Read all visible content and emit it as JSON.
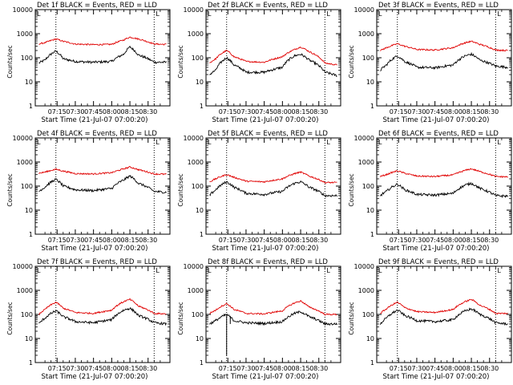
{
  "shared": {
    "xlabel": "Start Time (21-Jul-07 07:00:20)",
    "ylabel": "Counts/sec",
    "x_tick_labels": [
      "07:15",
      "07:30",
      "07:45",
      "08:00",
      "08:15",
      "08:30"
    ],
    "y_tick_labels": [
      "1",
      "10",
      "100",
      "1000",
      "10000"
    ],
    "dotted_marker_times_min": [
      14,
      95
    ],
    "l_marker_label": "L"
  },
  "chart_data": [
    {
      "type": "line",
      "title": "Det 1f BLACK = Events, RED = LLD",
      "x_unit": "minutes after 07:00:20",
      "xlim": [
        -3,
        108
      ],
      "ylim": [
        1,
        10000
      ],
      "y_scale": "log",
      "grid": false,
      "x": [
        0,
        5,
        14,
        20,
        30,
        45,
        60,
        70,
        75,
        82,
        95,
        105
      ],
      "series": [
        {
          "name": "BLACK = Events",
          "color": "#000000",
          "values": [
            60,
            80,
            190,
            90,
            70,
            65,
            70,
            140,
            280,
            130,
            65,
            65
          ]
        },
        {
          "name": "RED = LLD",
          "color": "#e00000",
          "values": [
            380,
            420,
            600,
            480,
            370,
            350,
            360,
            550,
            720,
            600,
            370,
            360
          ]
        }
      ]
    },
    {
      "type": "line",
      "title": "Det 2f BLACK = Events, RED = LLD",
      "x_unit": "minutes after 07:00:20",
      "xlim": [
        -3,
        108
      ],
      "ylim": [
        1,
        10000
      ],
      "y_scale": "log",
      "grid": false,
      "x": [
        0,
        5,
        14,
        20,
        30,
        45,
        60,
        70,
        75,
        82,
        95,
        105
      ],
      "series": [
        {
          "name": "BLACK = Events",
          "color": "#000000",
          "values": [
            20,
            30,
            100,
            50,
            25,
            25,
            40,
            120,
            140,
            80,
            25,
            18
          ]
        },
        {
          "name": "RED = LLD",
          "color": "#e00000",
          "values": [
            60,
            90,
            200,
            110,
            70,
            65,
            110,
            220,
            280,
            180,
            60,
            50
          ]
        }
      ]
    },
    {
      "type": "line",
      "title": "Det 3f BLACK = Events, RED = LLD",
      "x_unit": "minutes after 07:00:20",
      "xlim": [
        -3,
        108
      ],
      "ylim": [
        1,
        10000
      ],
      "y_scale": "log",
      "grid": false,
      "x": [
        0,
        5,
        14,
        20,
        30,
        45,
        60,
        70,
        75,
        82,
        95,
        105
      ],
      "series": [
        {
          "name": "BLACK = Events",
          "color": "#000000",
          "values": [
            30,
            50,
            120,
            70,
            40,
            38,
            50,
            120,
            140,
            80,
            45,
            40
          ]
        },
        {
          "name": "RED = LLD",
          "color": "#e00000",
          "values": [
            200,
            260,
            380,
            300,
            220,
            210,
            260,
            420,
            480,
            360,
            210,
            200
          ]
        }
      ]
    },
    {
      "type": "line",
      "title": "Det 4f BLACK = Events, RED = LLD",
      "x_unit": "minutes after 07:00:20",
      "xlim": [
        -3,
        108
      ],
      "ylim": [
        1,
        10000
      ],
      "y_scale": "log",
      "grid": false,
      "x": [
        0,
        5,
        14,
        20,
        30,
        45,
        60,
        70,
        75,
        82,
        95,
        105
      ],
      "series": [
        {
          "name": "BLACK = Events",
          "color": "#000000",
          "values": [
            60,
            90,
            190,
            100,
            70,
            65,
            80,
            180,
            260,
            130,
            60,
            55
          ]
        },
        {
          "name": "RED = LLD",
          "color": "#e00000",
          "values": [
            340,
            380,
            500,
            420,
            330,
            320,
            360,
            520,
            620,
            480,
            320,
            310
          ]
        }
      ]
    },
    {
      "type": "line",
      "title": "Det 5f BLACK = Events, RED = LLD",
      "x_unit": "minutes after 07:00:20",
      "xlim": [
        -3,
        108
      ],
      "ylim": [
        1,
        10000
      ],
      "y_scale": "log",
      "grid": false,
      "x": [
        0,
        5,
        14,
        20,
        30,
        45,
        60,
        70,
        75,
        82,
        95,
        105
      ],
      "series": [
        {
          "name": "BLACK = Events",
          "color": "#000000",
          "values": [
            40,
            70,
            150,
            90,
            50,
            45,
            60,
            130,
            150,
            90,
            40,
            40
          ]
        },
        {
          "name": "RED = LLD",
          "color": "#e00000",
          "values": [
            150,
            200,
            300,
            230,
            160,
            150,
            200,
            330,
            380,
            260,
            140,
            140
          ]
        }
      ]
    },
    {
      "type": "line",
      "title": "Det 6f BLACK = Events, RED = LLD",
      "x_unit": "minutes after 07:00:20",
      "xlim": [
        -3,
        108
      ],
      "ylim": [
        1,
        10000
      ],
      "y_scale": "log",
      "grid": false,
      "x": [
        0,
        5,
        14,
        20,
        30,
        45,
        60,
        70,
        75,
        82,
        95,
        105
      ],
      "series": [
        {
          "name": "BLACK = Events",
          "color": "#000000",
          "values": [
            40,
            60,
            120,
            70,
            45,
            42,
            50,
            110,
            130,
            80,
            40,
            38
          ]
        },
        {
          "name": "RED = LLD",
          "color": "#e00000",
          "values": [
            250,
            300,
            430,
            340,
            260,
            250,
            290,
            450,
            520,
            400,
            250,
            240
          ]
        }
      ]
    },
    {
      "type": "line",
      "title": "Det 7f BLACK = Events, RED = LLD",
      "x_unit": "minutes after 07:00:20",
      "xlim": [
        -3,
        108
      ],
      "ylim": [
        1,
        10000
      ],
      "y_scale": "log",
      "grid": false,
      "x": [
        0,
        5,
        14,
        20,
        30,
        45,
        60,
        70,
        75,
        82,
        95,
        105
      ],
      "series": [
        {
          "name": "BLACK = Events",
          "color": "#000000",
          "values": [
            40,
            70,
            140,
            80,
            50,
            45,
            60,
            150,
            180,
            90,
            45,
            40
          ]
        },
        {
          "name": "RED = LLD",
          "color": "#e00000",
          "values": [
            100,
            160,
            320,
            180,
            120,
            110,
            150,
            340,
            420,
            220,
            110,
            105
          ]
        }
      ]
    },
    {
      "type": "line",
      "title": "Det 8f BLACK = Events, RED = LLD",
      "x_unit": "minutes after 07:00:20",
      "xlim": [
        -3,
        108
      ],
      "ylim": [
        1,
        10000
      ],
      "y_scale": "log",
      "grid": false,
      "x": [
        0,
        5,
        14,
        20,
        30,
        45,
        60,
        70,
        75,
        82,
        95,
        105
      ],
      "series": [
        {
          "name": "BLACK = Events",
          "color": "#000000",
          "values": [
            40,
            55,
            100,
            55,
            45,
            42,
            50,
            110,
            130,
            80,
            40,
            40
          ]
        },
        {
          "name": "RED = LLD",
          "color": "#e00000",
          "values": [
            110,
            150,
            280,
            160,
            110,
            105,
            140,
            300,
            360,
            200,
            100,
            100
          ]
        }
      ],
      "annotations": [
        "dropout to ~2 counts/sec near 07:14",
        "dropout to ~40 counts/sec near 07:17"
      ]
    },
    {
      "type": "line",
      "title": "Det 9f BLACK = Events, RED = LLD",
      "x_unit": "minutes after 07:00:20",
      "xlim": [
        -3,
        108
      ],
      "ylim": [
        1,
        10000
      ],
      "y_scale": "log",
      "grid": false,
      "x": [
        0,
        5,
        14,
        20,
        30,
        45,
        60,
        70,
        75,
        82,
        95,
        105
      ],
      "series": [
        {
          "name": "BLACK = Events",
          "color": "#000000",
          "values": [
            40,
            70,
            150,
            90,
            55,
            50,
            60,
            140,
            170,
            100,
            45,
            40
          ]
        },
        {
          "name": "RED = LLD",
          "color": "#e00000",
          "values": [
            110,
            170,
            320,
            190,
            130,
            120,
            160,
            340,
            420,
            240,
            110,
            110
          ]
        }
      ]
    }
  ]
}
